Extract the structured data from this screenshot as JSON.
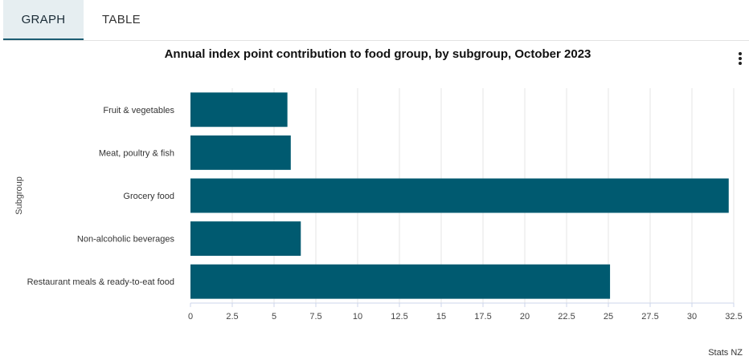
{
  "tabs": [
    {
      "label": "GRAPH",
      "active": true
    },
    {
      "label": "TABLE",
      "active": false
    }
  ],
  "menu_icon": "vertical-ellipsis-icon",
  "source": "Stats NZ",
  "colors": {
    "bar": "#005a70",
    "active_tab_bg": "#e6eef1",
    "active_tab_border": "#1d5d73"
  },
  "chart_data": {
    "type": "bar",
    "orientation": "horizontal",
    "title": "Annual index point contribution to food group, by subgroup, October 2023",
    "xlabel": "",
    "ylabel": "Subgroup",
    "categories": [
      "Fruit & vegetables",
      "Meat, poultry & fish",
      "Grocery food",
      "Non-alcoholic beverages",
      "Restaurant meals & ready-to-eat food"
    ],
    "values": [
      5.8,
      6.0,
      32.2,
      6.6,
      25.1
    ],
    "xlim": [
      0,
      32.5
    ],
    "xticks": [
      "0",
      "2.5",
      "5",
      "7.5",
      "10",
      "12.5",
      "15",
      "17.5",
      "20",
      "22.5",
      "25",
      "27.5",
      "30",
      "32.5"
    ],
    "grid": "vertical",
    "legend": "none"
  }
}
